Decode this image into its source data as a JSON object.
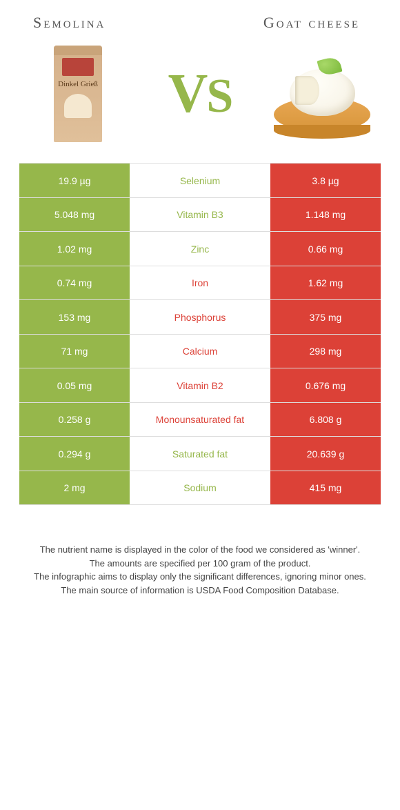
{
  "titles": {
    "left": "Semolina",
    "right": "Goat cheese"
  },
  "vs": "vs",
  "colors": {
    "left": "#96b74b",
    "right": "#dc4137",
    "left_text_winner": "#96b74b",
    "right_text_winner": "#dc4137"
  },
  "rows": [
    {
      "left": "19.9 µg",
      "mid": "Selenium",
      "right": "3.8 µg",
      "winner": "left"
    },
    {
      "left": "5.048 mg",
      "mid": "Vitamin B3",
      "right": "1.148 mg",
      "winner": "left"
    },
    {
      "left": "1.02 mg",
      "mid": "Zinc",
      "right": "0.66 mg",
      "winner": "left"
    },
    {
      "left": "0.74 mg",
      "mid": "Iron",
      "right": "1.62 mg",
      "winner": "right"
    },
    {
      "left": "153 mg",
      "mid": "Phosphorus",
      "right": "375 mg",
      "winner": "right"
    },
    {
      "left": "71 mg",
      "mid": "Calcium",
      "right": "298 mg",
      "winner": "right"
    },
    {
      "left": "0.05 mg",
      "mid": "Vitamin B2",
      "right": "0.676 mg",
      "winner": "right"
    },
    {
      "left": "0.258 g",
      "mid": "Monounsaturated fat",
      "right": "6.808 g",
      "winner": "right"
    },
    {
      "left": "0.294 g",
      "mid": "Saturated fat",
      "right": "20.639 g",
      "winner": "left"
    },
    {
      "left": "2 mg",
      "mid": "Sodium",
      "right": "415 mg",
      "winner": "left"
    }
  ],
  "footer": {
    "l1": "The nutrient name is displayed in the color of the food we considered as 'winner'.",
    "l2": "The amounts are specified per 100 gram of the product.",
    "l3": "The infographic aims to display only the significant differences, ignoring minor ones.",
    "l4": "The main source of information is USDA Food Composition Database."
  },
  "package": {
    "brand": "Dinkel Grieß"
  }
}
